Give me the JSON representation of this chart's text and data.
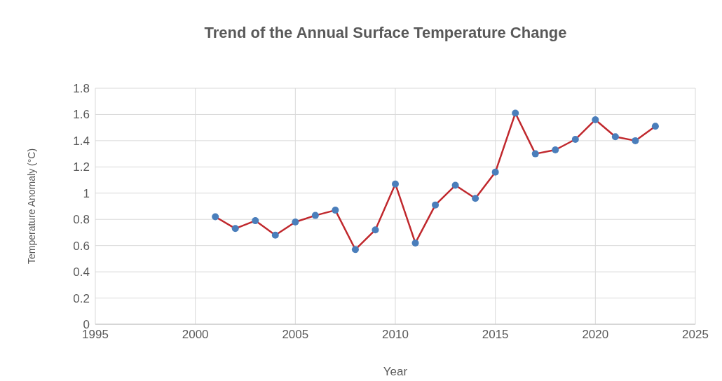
{
  "chart_data": {
    "type": "line",
    "title": "Trend of the Annual Surface Temperature Change",
    "xlabel": "Year",
    "ylabel": "Temperature Anomaly (°C)",
    "x": [
      2001,
      2002,
      2003,
      2004,
      2005,
      2006,
      2007,
      2008,
      2009,
      2010,
      2011,
      2012,
      2013,
      2014,
      2015,
      2016,
      2017,
      2018,
      2019,
      2020,
      2021,
      2022,
      2023
    ],
    "series": [
      {
        "color": "#c0282d",
        "colors": [
          "#4a7ebb",
          "#4a7ebb",
          "#4a7ebb",
          "#4a7ebb",
          "#4a7ebb",
          "#4a7ebb",
          "#4a7ebb",
          "#4a7ebb",
          "#4a7ebb",
          "#4a7ebb",
          "#4a7ebb",
          "#4a7ebb",
          "#4a7ebb",
          "#4a7ebb",
          "#4a7ebb",
          "#4a7ebb",
          "#4a7ebb",
          "#4a7ebb",
          "#4a7ebb",
          "#4a7ebb",
          "#4a7ebb",
          "#4a7ebb",
          "#4a7ebb"
        ],
        "values": [
          0.82,
          0.73,
          0.79,
          0.68,
          0.78,
          0.83,
          0.87,
          0.57,
          0.72,
          1.07,
          0.62,
          0.91,
          1.06,
          0.96,
          1.16,
          1.61,
          1.3,
          1.33,
          1.41,
          1.56,
          1.43,
          1.4,
          1.51
        ]
      }
    ],
    "xlim": [
      1995,
      2025
    ],
    "xticks": [
      1995,
      2000,
      2005,
      2010,
      2015,
      2020,
      2025
    ],
    "ylim": [
      0,
      1.8
    ],
    "yticks": [
      0,
      0.2,
      0.4,
      0.6,
      0.8,
      1,
      1.2,
      1.4,
      1.6,
      1.8
    ],
    "grid": true,
    "legend": false,
    "marker": "circle",
    "line_style": "solid"
  }
}
